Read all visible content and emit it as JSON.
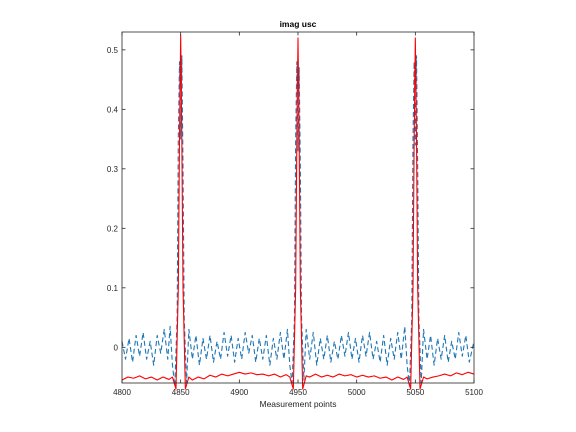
{
  "chart_data": {
    "type": "line",
    "title": "imag usc",
    "xlabel": "Measurement points",
    "ylabel": "",
    "xlim": [
      4800,
      5100
    ],
    "ylim": [
      -0.06,
      0.53
    ],
    "xticks": [
      4800,
      4850,
      4900,
      4950,
      5000,
      5050,
      5100
    ],
    "yticks": [
      0,
      0.1,
      0.2,
      0.3,
      0.4,
      0.5
    ],
    "xtick_labels": [
      "4800",
      "4850",
      "4900",
      "4950",
      "5000",
      "5050",
      "5100"
    ],
    "ytick_labels": [
      "0",
      "0.1",
      "0.2",
      "0.3",
      "0.4",
      "0.5"
    ],
    "grid": false,
    "series": [
      {
        "style": "solid",
        "color": "#ff0000",
        "peaks": [
          4850,
          4950,
          5050
        ],
        "peak_value": 0.525,
        "baseline": -0.04,
        "points": [
          [
            4800,
            -0.055
          ],
          [
            4805,
            -0.05
          ],
          [
            4810,
            -0.052
          ],
          [
            4815,
            -0.048
          ],
          [
            4820,
            -0.053
          ],
          [
            4825,
            -0.05
          ],
          [
            4830,
            -0.055
          ],
          [
            4835,
            -0.05
          ],
          [
            4840,
            -0.054
          ],
          [
            4843,
            -0.05
          ],
          [
            4846,
            -0.07
          ],
          [
            4848,
            0.1
          ],
          [
            4849,
            0.35
          ],
          [
            4850,
            0.525
          ],
          [
            4851,
            0.35
          ],
          [
            4852,
            0.1
          ],
          [
            4854,
            -0.07
          ],
          [
            4857,
            -0.05
          ],
          [
            4860,
            -0.055
          ],
          [
            4865,
            -0.05
          ],
          [
            4870,
            -0.053
          ],
          [
            4875,
            -0.047
          ],
          [
            4880,
            -0.05
          ],
          [
            4885,
            -0.045
          ],
          [
            4890,
            -0.048
          ],
          [
            4895,
            -0.045
          ],
          [
            4900,
            -0.042
          ],
          [
            4905,
            -0.045
          ],
          [
            4910,
            -0.043
          ],
          [
            4915,
            -0.046
          ],
          [
            4920,
            -0.045
          ],
          [
            4925,
            -0.048
          ],
          [
            4930,
            -0.045
          ],
          [
            4935,
            -0.05
          ],
          [
            4940,
            -0.046
          ],
          [
            4943,
            -0.05
          ],
          [
            4946,
            -0.07
          ],
          [
            4948,
            0.1
          ],
          [
            4949,
            0.35
          ],
          [
            4950,
            0.52
          ],
          [
            4951,
            0.35
          ],
          [
            4952,
            0.1
          ],
          [
            4954,
            -0.07
          ],
          [
            4957,
            -0.048
          ],
          [
            4960,
            -0.05
          ],
          [
            4965,
            -0.045
          ],
          [
            4970,
            -0.05
          ],
          [
            4975,
            -0.047
          ],
          [
            4980,
            -0.05
          ],
          [
            4985,
            -0.045
          ],
          [
            4990,
            -0.048
          ],
          [
            4995,
            -0.046
          ],
          [
            5000,
            -0.05
          ],
          [
            5005,
            -0.047
          ],
          [
            5010,
            -0.05
          ],
          [
            5015,
            -0.048
          ],
          [
            5020,
            -0.052
          ],
          [
            5025,
            -0.05
          ],
          [
            5030,
            -0.055
          ],
          [
            5035,
            -0.05
          ],
          [
            5040,
            -0.054
          ],
          [
            5043,
            -0.05
          ],
          [
            5046,
            -0.07
          ],
          [
            5048,
            0.1
          ],
          [
            5049,
            0.35
          ],
          [
            5050,
            0.52
          ],
          [
            5051,
            0.35
          ],
          [
            5052,
            0.1
          ],
          [
            5054,
            -0.07
          ],
          [
            5057,
            -0.05
          ],
          [
            5060,
            -0.053
          ],
          [
            5065,
            -0.05
          ],
          [
            5070,
            -0.048
          ],
          [
            5075,
            -0.045
          ],
          [
            5080,
            -0.048
          ],
          [
            5085,
            -0.043
          ],
          [
            5090,
            -0.046
          ],
          [
            5095,
            -0.042
          ],
          [
            5100,
            -0.045
          ]
        ]
      },
      {
        "style": "dashed",
        "color": "#1f77b4",
        "peaks": [
          4850,
          4950,
          5050
        ],
        "peak_value": 0.5,
        "noise_range": [
          -0.03,
          0.03
        ],
        "points": [
          [
            4800,
            0.01
          ],
          [
            4803,
            -0.02
          ],
          [
            4806,
            0.015
          ],
          [
            4809,
            -0.025
          ],
          [
            4812,
            0.02
          ],
          [
            4815,
            -0.015
          ],
          [
            4818,
            0.025
          ],
          [
            4821,
            -0.02
          ],
          [
            4824,
            0.01
          ],
          [
            4827,
            -0.03
          ],
          [
            4830,
            0.02
          ],
          [
            4833,
            -0.01
          ],
          [
            4836,
            0.03
          ],
          [
            4839,
            -0.02
          ],
          [
            4841,
            0.035
          ],
          [
            4843,
            -0.03
          ],
          [
            4845,
            -0.065
          ],
          [
            4847,
            0.05
          ],
          [
            4848,
            0.35
          ],
          [
            4849,
            0.48
          ],
          [
            4850,
            0.35
          ],
          [
            4851,
            0.49
          ],
          [
            4852,
            0.3
          ],
          [
            4853,
            0.05
          ],
          [
            4855,
            -0.06
          ],
          [
            4857,
            0.03
          ],
          [
            4860,
            -0.02
          ],
          [
            4863,
            0.02
          ],
          [
            4866,
            -0.03
          ],
          [
            4869,
            0.015
          ],
          [
            4872,
            -0.02
          ],
          [
            4875,
            0.02
          ],
          [
            4878,
            -0.025
          ],
          [
            4881,
            0.01
          ],
          [
            4884,
            -0.02
          ],
          [
            4887,
            0.025
          ],
          [
            4890,
            -0.015
          ],
          [
            4893,
            0.02
          ],
          [
            4896,
            -0.025
          ],
          [
            4899,
            0.015
          ],
          [
            4902,
            -0.02
          ],
          [
            4905,
            0.025
          ],
          [
            4908,
            -0.01
          ],
          [
            4911,
            0.02
          ],
          [
            4914,
            -0.025
          ],
          [
            4917,
            0.015
          ],
          [
            4920,
            -0.02
          ],
          [
            4923,
            0.02
          ],
          [
            4926,
            -0.03
          ],
          [
            4929,
            0.015
          ],
          [
            4932,
            -0.02
          ],
          [
            4935,
            0.025
          ],
          [
            4938,
            -0.02
          ],
          [
            4941,
            0.03
          ],
          [
            4943,
            -0.03
          ],
          [
            4945,
            -0.06
          ],
          [
            4947,
            0.05
          ],
          [
            4948,
            0.35
          ],
          [
            4949,
            0.48
          ],
          [
            4950,
            0.33
          ],
          [
            4951,
            0.47
          ],
          [
            4952,
            0.3
          ],
          [
            4953,
            0.05
          ],
          [
            4955,
            -0.055
          ],
          [
            4957,
            0.03
          ],
          [
            4960,
            -0.02
          ],
          [
            4963,
            0.025
          ],
          [
            4966,
            -0.03
          ],
          [
            4969,
            0.015
          ],
          [
            4972,
            -0.02
          ],
          [
            4975,
            0.02
          ],
          [
            4978,
            -0.025
          ],
          [
            4981,
            0.01
          ],
          [
            4984,
            -0.02
          ],
          [
            4987,
            0.02
          ],
          [
            4990,
            -0.015
          ],
          [
            4993,
            0.025
          ],
          [
            4996,
            -0.02
          ],
          [
            4999,
            0.015
          ],
          [
            5002,
            -0.025
          ],
          [
            5005,
            0.02
          ],
          [
            5008,
            -0.015
          ],
          [
            5011,
            0.025
          ],
          [
            5014,
            -0.02
          ],
          [
            5017,
            0.01
          ],
          [
            5020,
            -0.025
          ],
          [
            5023,
            0.02
          ],
          [
            5026,
            -0.03
          ],
          [
            5029,
            0.015
          ],
          [
            5032,
            -0.02
          ],
          [
            5035,
            0.025
          ],
          [
            5038,
            -0.02
          ],
          [
            5041,
            0.035
          ],
          [
            5043,
            -0.03
          ],
          [
            5045,
            -0.065
          ],
          [
            5047,
            0.05
          ],
          [
            5048,
            0.35
          ],
          [
            5049,
            0.48
          ],
          [
            5050,
            0.34
          ],
          [
            5051,
            0.49
          ],
          [
            5052,
            0.3
          ],
          [
            5053,
            0.05
          ],
          [
            5055,
            -0.06
          ],
          [
            5057,
            0.03
          ],
          [
            5060,
            -0.02
          ],
          [
            5063,
            0.02
          ],
          [
            5066,
            -0.03
          ],
          [
            5069,
            0.015
          ],
          [
            5072,
            -0.02
          ],
          [
            5075,
            0.02
          ],
          [
            5078,
            -0.025
          ],
          [
            5081,
            0.01
          ],
          [
            5084,
            -0.02
          ],
          [
            5087,
            0.025
          ],
          [
            5090,
            -0.015
          ],
          [
            5093,
            0.02
          ],
          [
            5096,
            -0.025
          ],
          [
            5100,
            0.01
          ]
        ]
      }
    ]
  }
}
